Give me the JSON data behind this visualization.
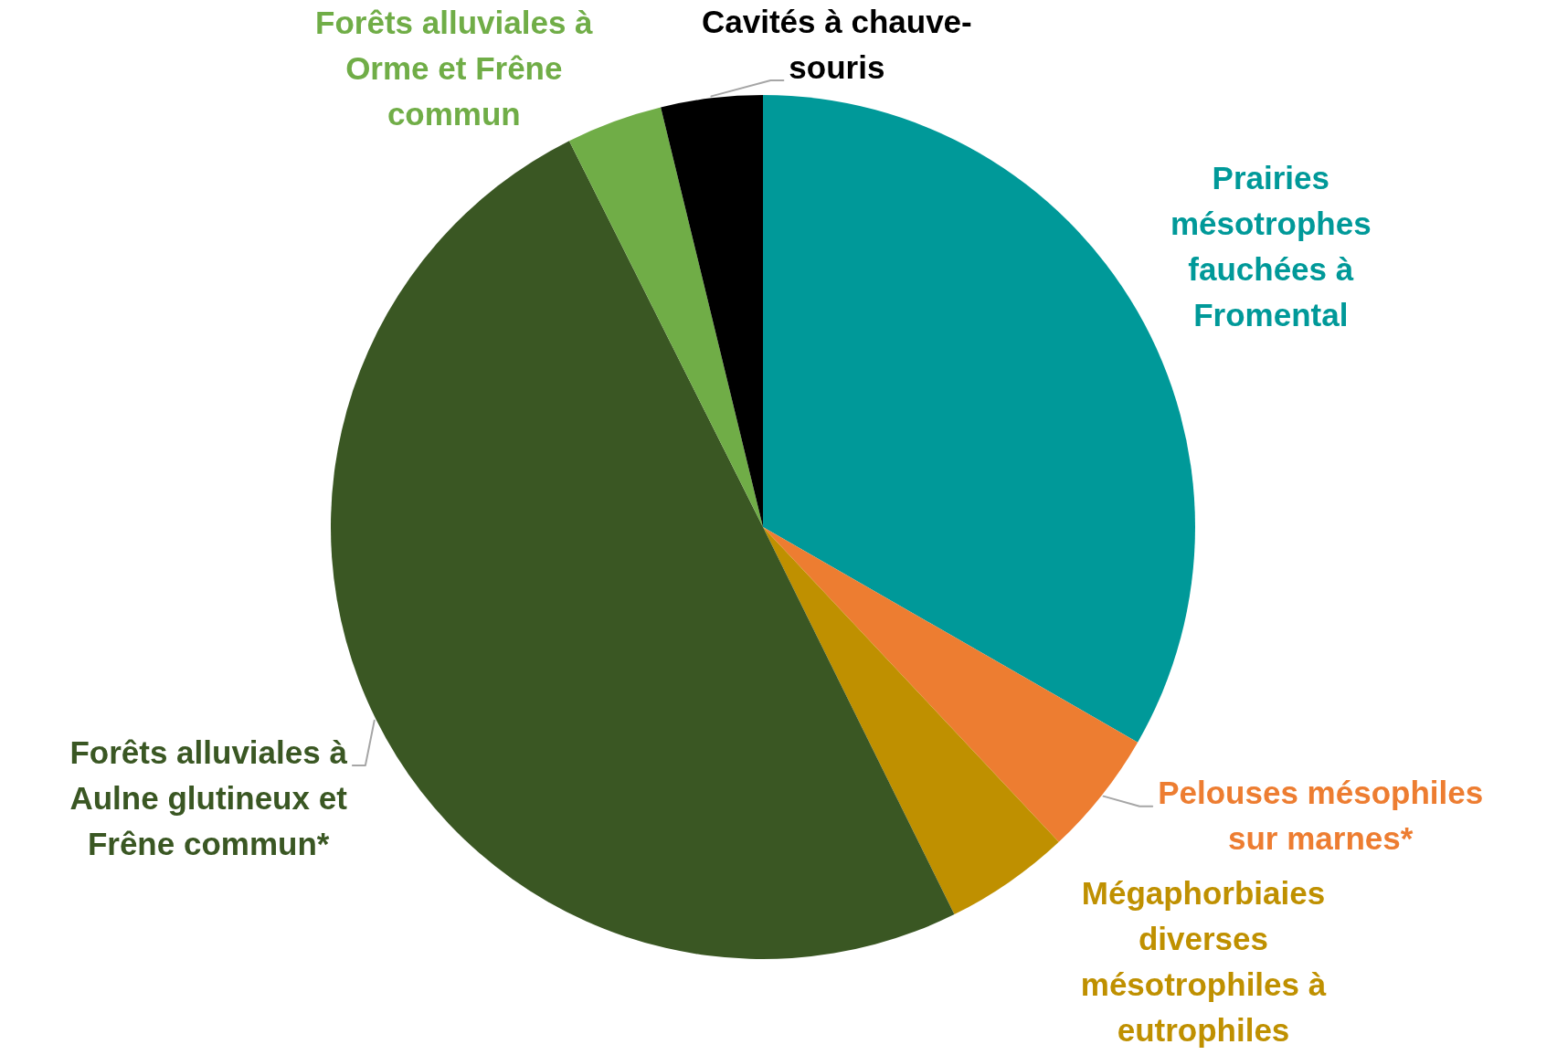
{
  "chart_data": {
    "type": "pie",
    "categories": [
      "Prairies mésotrophes fauchées à Fromental",
      "Pelouses mésophiles sur marnes*",
      "Mégaphorbiaies diverses mésotrophiles à eutrophiles",
      "Forêts alluviales à Aulne glutineux et Frêne commun*",
      "Forêts alluviales à Orme et Frêne commun",
      "Cavités à chauve-souris"
    ],
    "values": [
      33.3,
      4.7,
      4.7,
      49.9,
      3.6,
      3.8
    ],
    "colors": [
      "#009999",
      "#ed7d31",
      "#bf9000",
      "#3a5723",
      "#70ad47",
      "#000000"
    ]
  }
}
